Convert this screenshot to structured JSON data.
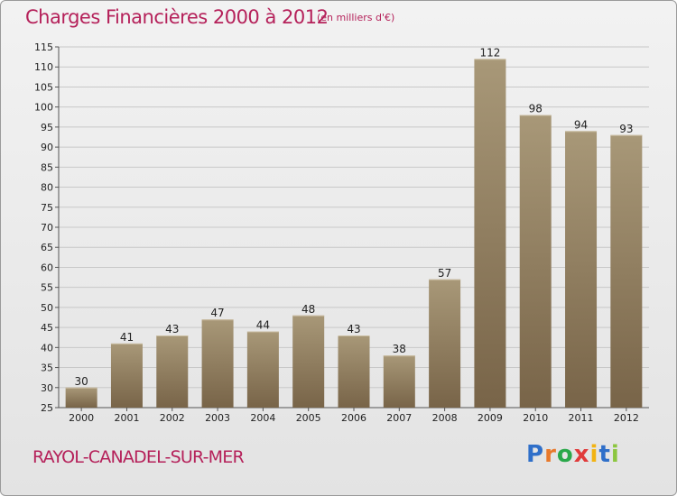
{
  "header": {
    "title": "Charges Financières 2000 à 2012",
    "subtitle": "(en milliers d'€)"
  },
  "footer": {
    "town": "RAYOL-CANADEL-SUR-MER",
    "logo": {
      "letters": [
        "P",
        "r",
        "o",
        "x",
        "i",
        "t",
        "i"
      ],
      "colors": [
        "#2f6fc9",
        "#e8792b",
        "#2aa84a",
        "#e03a3a",
        "#f2b312",
        "#2f6fc9",
        "#8cc63f"
      ]
    }
  },
  "colors": {
    "bar_top": "#a89878",
    "bar_bottom": "#786448",
    "grid": "#c8c8c8",
    "title": "#b5215a"
  },
  "chart_data": {
    "type": "bar",
    "title": "Charges Financières 2000 à 2012",
    "subtitle": "(en milliers d'€)",
    "xlabel": "",
    "ylabel": "",
    "categories": [
      "2000",
      "2001",
      "2002",
      "2003",
      "2004",
      "2005",
      "2006",
      "2007",
      "2008",
      "2009",
      "2010",
      "2011",
      "2012"
    ],
    "values": [
      30,
      41,
      43,
      47,
      44,
      48,
      43,
      38,
      57,
      112,
      98,
      94,
      93
    ],
    "ylim": [
      25,
      115
    ],
    "yticks": [
      "25",
      "30",
      "35",
      "40",
      "45",
      "50",
      "55",
      "60",
      "65",
      "70",
      "75",
      "80",
      "85",
      "90",
      "95",
      "100",
      "105",
      "110",
      "115"
    ],
    "grid": "horizontal",
    "data_labels": true
  }
}
